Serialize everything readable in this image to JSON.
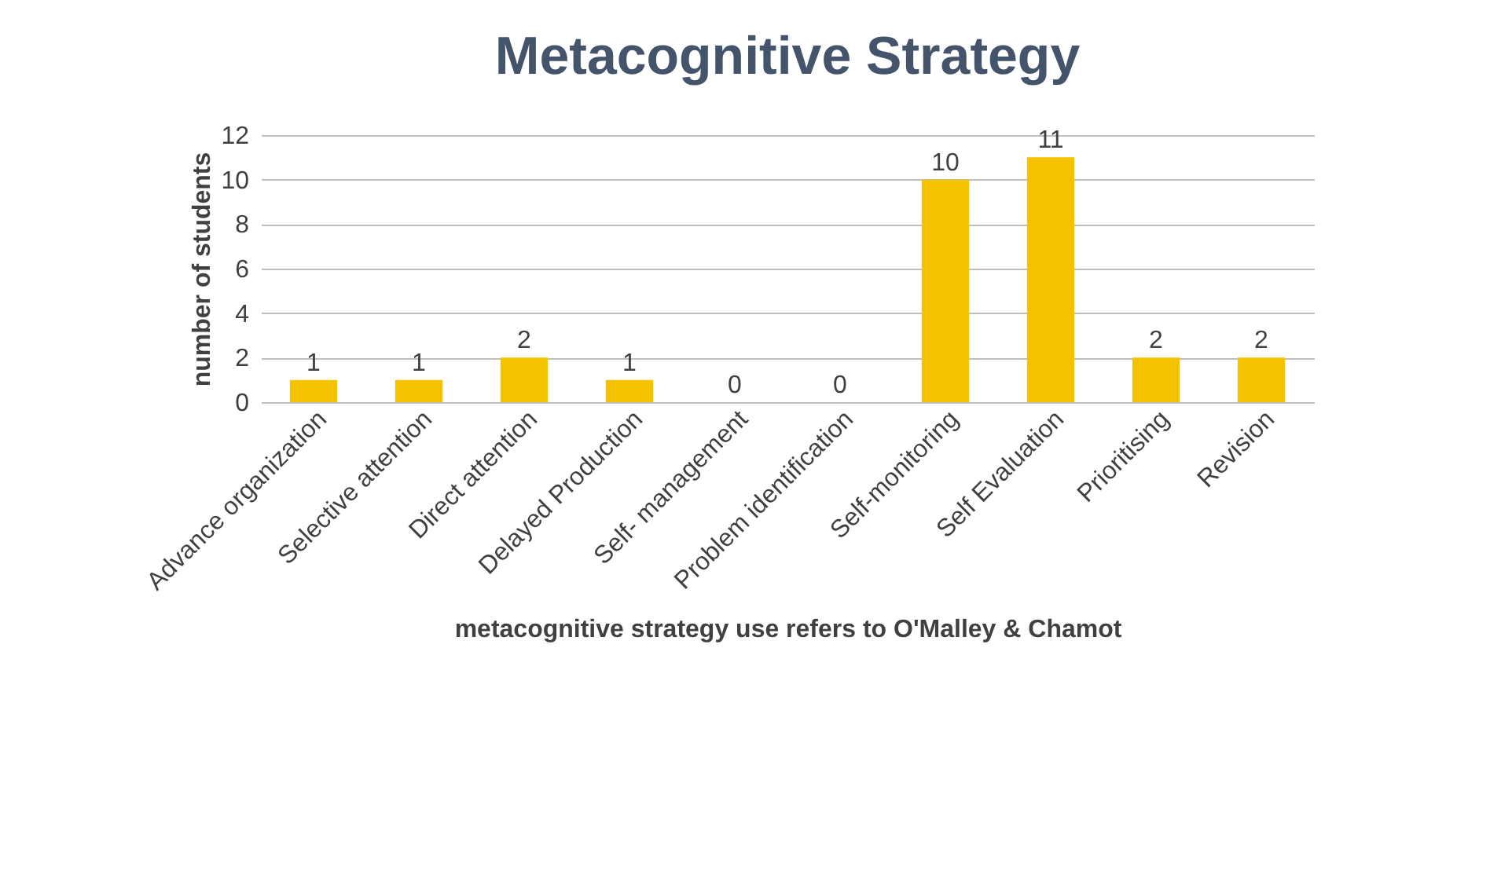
{
  "chart_data": {
    "type": "bar",
    "title": "Metacognitive Strategy",
    "xlabel": "metacognitive strategy use refers to O'Malley & Chamot",
    "ylabel": "number of students",
    "categories": [
      "Advance organization",
      "Selective attention",
      "Direct attention",
      "Delayed Production",
      "Self- management",
      "Problem identification",
      "Self-monitoring",
      "Self Evaluation",
      "Prioritising",
      "Revision"
    ],
    "values": [
      1,
      1,
      2,
      1,
      0,
      0,
      10,
      11,
      2,
      2
    ],
    "color": "#f5c200",
    "ylim": [
      0,
      12
    ],
    "yticks": [
      0,
      2,
      4,
      6,
      8,
      10,
      12
    ],
    "grid": "y",
    "data_labels": true
  }
}
